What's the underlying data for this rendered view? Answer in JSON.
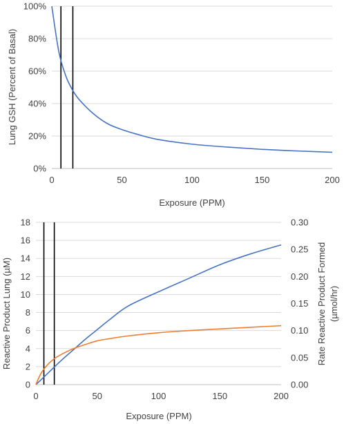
{
  "chart_data": [
    {
      "type": "line",
      "xlabel": "Exposure (PPM)",
      "ylabel": "Lung GSH (Percent of Basal)",
      "xlim": [
        0,
        200
      ],
      "ylim": [
        0,
        100
      ],
      "x_ticks": [
        "0",
        "50",
        "100",
        "150",
        "200"
      ],
      "y_ticks": [
        "0%",
        "20%",
        "40%",
        "60%",
        "80%",
        "100%"
      ],
      "grid": "horizontal",
      "vertical_lines_x": [
        6.5,
        15
      ],
      "series": [
        {
          "color": "#4472c4",
          "x": [
            0,
            5,
            10,
            15,
            20,
            30,
            40,
            50,
            60,
            75,
            100,
            125,
            150,
            175,
            200
          ],
          "y": [
            100,
            72,
            57,
            48,
            42,
            33.5,
            27.5,
            24,
            21.3,
            18,
            15,
            13.2,
            11.8,
            10.8,
            10
          ]
        }
      ]
    },
    {
      "type": "line",
      "xlabel": "Exposure (PPM)",
      "ylabel": "Reactive Product Lung (µM)",
      "ylabel_right": "Rate Reactive Product Formed (µmol/hr)",
      "xlim": [
        0,
        200
      ],
      "ylim": [
        0,
        18
      ],
      "ylim_right": [
        0,
        0.3
      ],
      "x_ticks": [
        "0",
        "50",
        "100",
        "150",
        "200"
      ],
      "y_ticks": [
        "0",
        "2",
        "4",
        "6",
        "8",
        "10",
        "12",
        "14",
        "16",
        "18"
      ],
      "y_ticks_right": [
        "0.00",
        "0.05",
        "0.10",
        "0.15",
        "0.20",
        "0.25",
        "0.30"
      ],
      "grid": "horizontal",
      "vertical_lines_x": [
        6.5,
        15
      ],
      "series": [
        {
          "axis": "left",
          "color": "#4472c4",
          "x": [
            0,
            10,
            20,
            30,
            40,
            50,
            60,
            75,
            100,
            125,
            150,
            175,
            200
          ],
          "y": [
            0,
            1.3,
            2.6,
            3.8,
            5.0,
            6.1,
            7.2,
            8.7,
            10.3,
            11.8,
            13.3,
            14.5,
            15.5
          ]
        },
        {
          "axis": "right",
          "color": "#ed7d31",
          "x": [
            0,
            2,
            5,
            10,
            15,
            20,
            30,
            40,
            50,
            60,
            75,
            100,
            125,
            150,
            175,
            200
          ],
          "y": [
            0,
            0.011,
            0.024,
            0.038,
            0.048,
            0.055,
            0.066,
            0.074,
            0.081,
            0.085,
            0.09,
            0.096,
            0.1,
            0.103,
            0.106,
            0.109
          ]
        }
      ]
    }
  ]
}
